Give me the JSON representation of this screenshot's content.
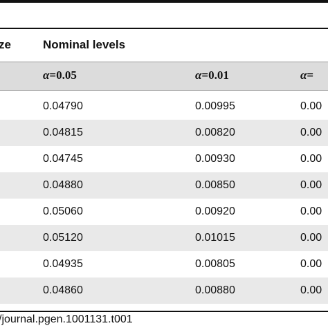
{
  "header": {
    "size_label": "ze",
    "nominal_label": "Nominal levels",
    "alphas": [
      {
        "symbol": "α",
        "value": "0.05"
      },
      {
        "symbol": "α",
        "value": "0.01"
      },
      {
        "symbol": "α",
        "value": ""
      }
    ],
    "alpha_eq": "="
  },
  "rows": [
    {
      "c1": "0.04790",
      "c2": "0.00995",
      "c3": "0.00"
    },
    {
      "c1": "0.04815",
      "c2": "0.00820",
      "c3": "0.00"
    },
    {
      "c1": "0.04745",
      "c2": "0.00930",
      "c3": "0.00"
    },
    {
      "c1": "0.04880",
      "c2": "0.00850",
      "c3": "0.00"
    },
    {
      "c1": "0.05060",
      "c2": "0.00920",
      "c3": "0.00"
    },
    {
      "c1": "0.05120",
      "c2": "0.01015",
      "c3": "0.00"
    },
    {
      "c1": "0.04935",
      "c2": "0.00805",
      "c3": "0.00"
    },
    {
      "c1": "0.04860",
      "c2": "0.00880",
      "c3": "0.00"
    }
  ],
  "caption": "/journal.pgen.1001131.t001"
}
